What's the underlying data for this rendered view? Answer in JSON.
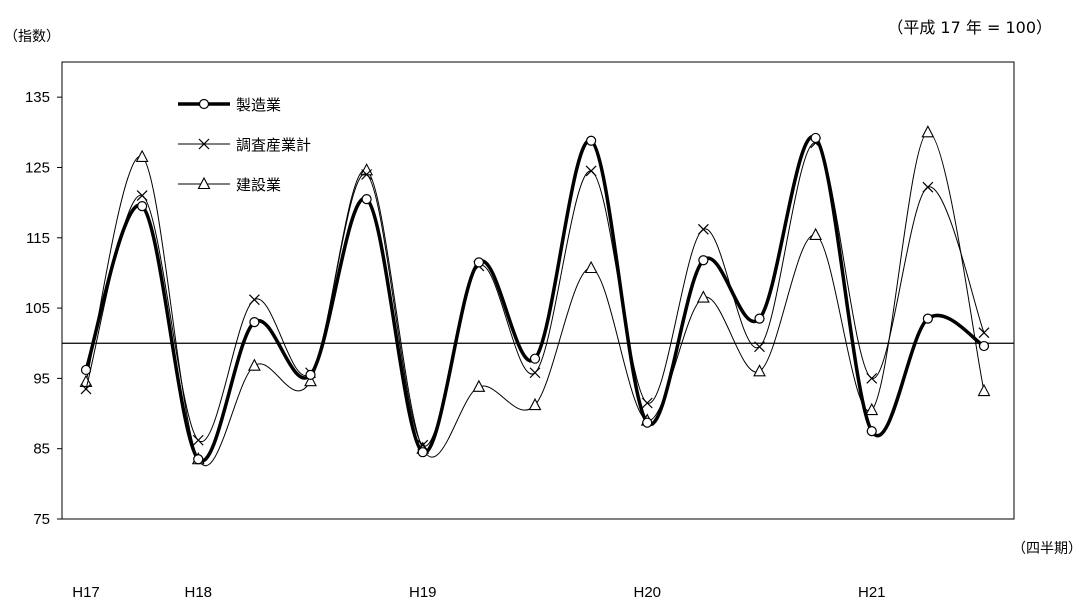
{
  "header": {
    "y_unit": "（指数）",
    "base_note": "（平成 17 年 = 100）",
    "x_unit": "（四半期）"
  },
  "chart_data": {
    "type": "line",
    "ylim": [
      75,
      140
    ],
    "y_ticks": [
      75,
      85,
      95,
      105,
      115,
      125,
      135
    ],
    "reference_line": 100,
    "year_labels": [
      "H17",
      "H18",
      "H19",
      "H20",
      "H21"
    ],
    "year_label_at": [
      1,
      3,
      7,
      11,
      15
    ],
    "x": [
      1,
      2,
      3,
      4,
      5,
      6,
      7,
      8,
      9,
      10,
      11,
      12,
      13,
      14,
      15,
      16,
      17
    ],
    "legend_position": "top-left",
    "series": [
      {
        "name": "製造業",
        "marker": "circle",
        "line_width": 3.5,
        "values": [
          96.2,
          119.5,
          83.5,
          103.0,
          95.5,
          120.5,
          84.5,
          111.5,
          97.8,
          128.8,
          88.7,
          111.8,
          103.5,
          129.2,
          87.5,
          103.5,
          99.6
        ]
      },
      {
        "name": "調査産業計",
        "marker": "cross",
        "line_width": 1,
        "values": [
          93.5,
          121.0,
          86.2,
          106.2,
          95.8,
          124.0,
          85.5,
          111.0,
          95.8,
          124.5,
          91.5,
          116.2,
          99.5,
          128.5,
          95.0,
          122.2,
          101.5
        ]
      },
      {
        "name": "建設業",
        "marker": "triangle",
        "line_width": 1,
        "values": [
          94.5,
          126.5,
          83.5,
          96.8,
          94.6,
          124.6,
          85.0,
          93.8,
          91.2,
          110.7,
          89.0,
          106.5,
          96.0,
          115.4,
          90.5,
          130.0,
          93.2
        ]
      }
    ]
  }
}
